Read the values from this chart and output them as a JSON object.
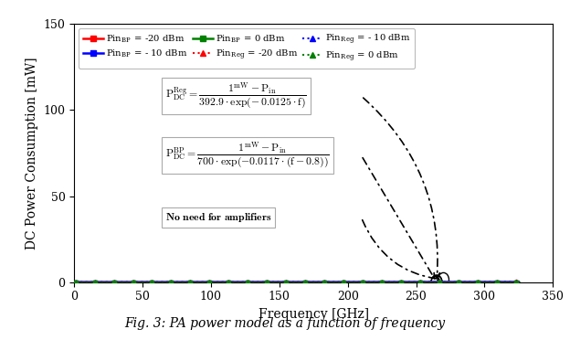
{
  "xlabel": "Frequency [GHz]",
  "ylabel": "DC Power Consumption [mW]",
  "caption": "Fig. 3: PA power model as a function of frequency",
  "xlim": [
    0,
    350
  ],
  "ylim": [
    0,
    150
  ],
  "f_min": 1,
  "f_max": 325,
  "pin_levels_dbm": [
    -20,
    -10,
    0
  ],
  "colors": [
    "red",
    "blue",
    "green"
  ],
  "legend_bp_labels": [
    "Pin$_\\mathregular{BP}$ = -20 dBm",
    "Pin$_\\mathregular{BP}$ = - 10 dBm",
    "Pin$_\\mathregular{BP}$ = 0 dBm"
  ],
  "legend_reg_labels": [
    "Pin$_\\mathregular{Reg}$ = -20 dBm",
    "Pin$_\\mathregular{Reg}$ = - 10 dBm",
    "Pin$_\\mathregular{Reg}$ = 0 dBm"
  ],
  "reg_A": 392.9,
  "reg_b": 0.0125,
  "bp_A": 700.0,
  "bp_b": 0.0117,
  "bp_f0": 0.8,
  "xticks": [
    0,
    50,
    100,
    150,
    200,
    250,
    300,
    350
  ],
  "yticks": [
    0,
    50,
    100,
    150
  ]
}
